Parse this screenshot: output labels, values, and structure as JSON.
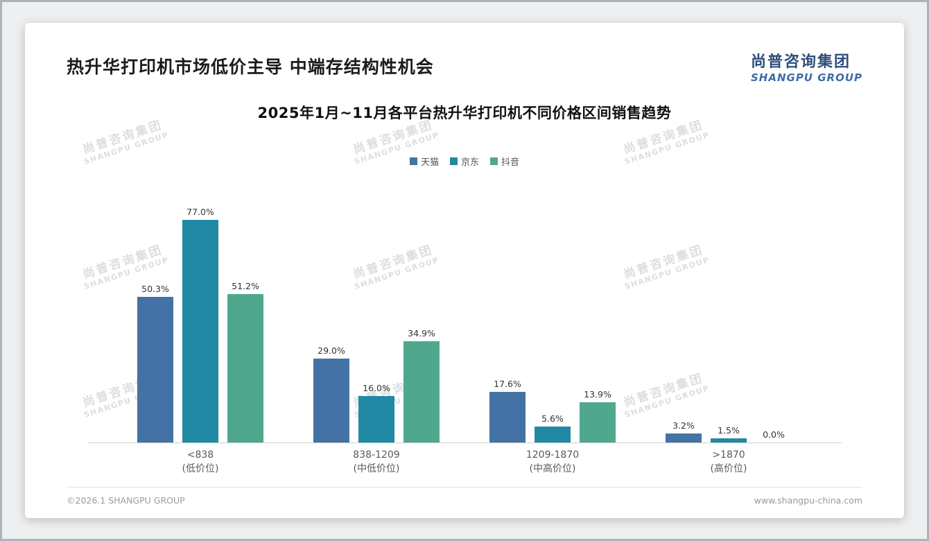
{
  "header": {
    "title": "热升华打印机市场低价主导 中端存结构性机会",
    "logo_cn": "尚普咨询集团",
    "logo_en": "SHANGPU GROUP"
  },
  "watermark": {
    "line1": "尚普咨询集团",
    "line2": "SHANGPU GROUP"
  },
  "chart_data": {
    "type": "bar",
    "title": "2025年1月~11月各平台热升华打印机不同价格区间销售趋势",
    "categories": [
      "<838",
      "838-1209",
      "1209-1870",
      ">1870"
    ],
    "category_sublabels": [
      "(低价位)",
      "(中低价位)",
      "(中高价位)",
      "(高价位)"
    ],
    "series": [
      {
        "name": "天猫",
        "color": "#4472a4",
        "values": [
          50.3,
          29.0,
          17.6,
          3.2
        ]
      },
      {
        "name": "京东",
        "color": "#2189a4",
        "values": [
          77.0,
          16.0,
          5.6,
          1.5
        ]
      },
      {
        "name": "抖音",
        "color": "#4fa88e",
        "values": [
          51.2,
          34.9,
          13.9,
          0.0
        ]
      }
    ],
    "value_suffix": "%",
    "ylim": [
      0,
      80
    ],
    "legend_position": "top",
    "grid": false,
    "xlabel": "",
    "ylabel": ""
  },
  "footer": {
    "copyright": "©2026.1 SHANGPU GROUP",
    "website": "www.shangpu-china.com"
  }
}
